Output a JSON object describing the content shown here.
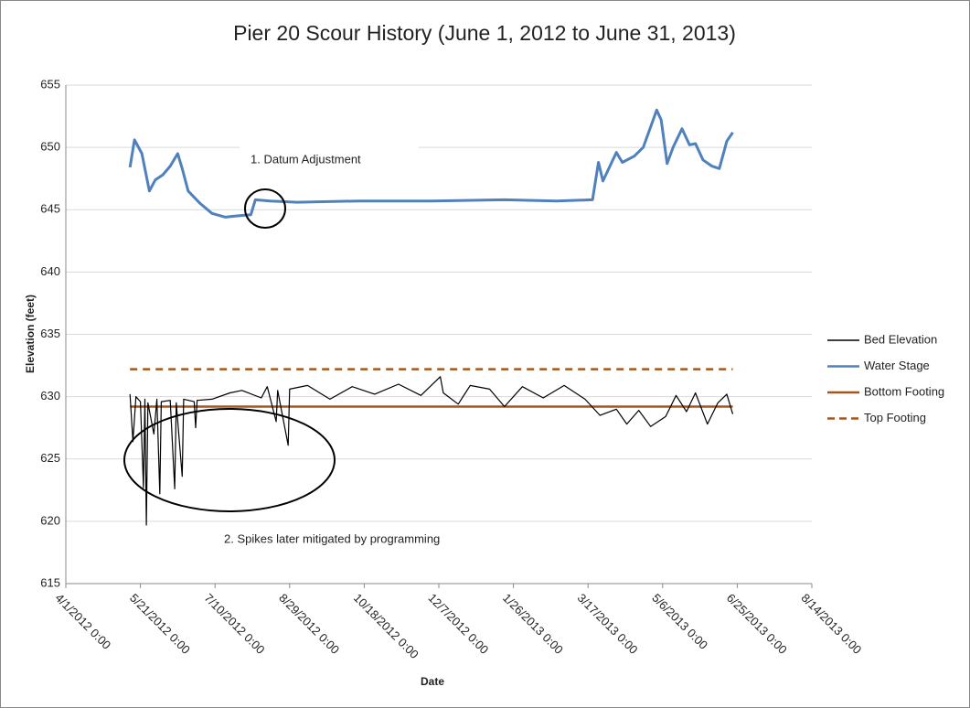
{
  "chart_data": {
    "type": "line",
    "title": "Pier 20 Scour History (June 1, 2012 to June 31, 2013)",
    "xlabel": "Date",
    "ylabel": "Elevation (feet)",
    "xlim": [
      "2012-04-01",
      "2013-08-14"
    ],
    "xticks": [
      {
        "value": "2012-04-01",
        "label": "4/1/2012 0:00"
      },
      {
        "value": "2012-05-21",
        "label": "5/21/2012 0:00"
      },
      {
        "value": "2012-07-10",
        "label": "7/10/2012 0:00"
      },
      {
        "value": "2012-08-29",
        "label": "8/29/2012 0:00"
      },
      {
        "value": "2012-10-18",
        "label": "10/18/2012 0:00"
      },
      {
        "value": "2012-12-07",
        "label": "12/7/2012 0:00"
      },
      {
        "value": "2013-01-26",
        "label": "1/26/2013 0:00"
      },
      {
        "value": "2013-03-17",
        "label": "3/17/2013 0:00"
      },
      {
        "value": "2013-05-06",
        "label": "5/6/2013 0:00"
      },
      {
        "value": "2013-06-25",
        "label": "6/25/2013 0:00"
      },
      {
        "value": "2013-08-14",
        "label": "8/14/2013 0:00"
      }
    ],
    "ylim": [
      615,
      655
    ],
    "yticks": [
      615,
      620,
      625,
      630,
      635,
      640,
      645,
      650,
      655
    ],
    "grid": true,
    "legend": "right",
    "annotations": [
      "1. Datum Adjustment",
      "2. Spikes later mitigated by programming"
    ],
    "series": [
      {
        "name": "Bed Elevation",
        "color": "#000000",
        "dash": false,
        "width": 1.2,
        "x": [
          "2012-05-14",
          "2012-05-16",
          "2012-05-18",
          "2012-05-21",
          "2012-05-23",
          "2012-05-24",
          "2012-05-25",
          "2012-05-26",
          "2012-05-30",
          "2012-06-01",
          "2012-06-03",
          "2012-06-04",
          "2012-06-10",
          "2012-06-13",
          "2012-06-14",
          "2012-06-18",
          "2012-06-19",
          "2012-06-26",
          "2012-06-27",
          "2012-06-28",
          "2012-07-08",
          "2012-07-20",
          "2012-07-28",
          "2012-08-10",
          "2012-08-14",
          "2012-08-20",
          "2012-08-21",
          "2012-08-28",
          "2012-08-29",
          "2012-09-10",
          "2012-09-25",
          "2012-10-10",
          "2012-10-25",
          "2012-11-10",
          "2012-11-25",
          "2012-12-08",
          "2012-12-10",
          "2012-12-20",
          "2012-12-28",
          "2013-01-10",
          "2013-01-20",
          "2013-02-01",
          "2013-02-15",
          "2013-03-01",
          "2013-03-15",
          "2013-03-25",
          "2013-04-05",
          "2013-04-12",
          "2013-04-20",
          "2013-04-28",
          "2013-05-08",
          "2013-05-15",
          "2013-05-22",
          "2013-05-28",
          "2013-06-05",
          "2013-06-12",
          "2013-06-18",
          "2013-06-22"
        ],
        "values": [
          630.2,
          626.4,
          630.0,
          629.6,
          622.7,
          629.8,
          619.7,
          629.5,
          627.0,
          629.8,
          622.2,
          629.6,
          629.7,
          622.6,
          629.5,
          623.6,
          629.8,
          629.6,
          627.5,
          629.7,
          629.8,
          630.3,
          630.5,
          629.9,
          630.8,
          628.0,
          630.5,
          626.1,
          630.6,
          630.9,
          629.8,
          630.8,
          630.2,
          631.0,
          630.1,
          631.6,
          630.3,
          629.4,
          630.9,
          630.6,
          629.2,
          630.8,
          629.9,
          630.9,
          629.8,
          628.5,
          629.0,
          627.8,
          628.9,
          627.6,
          628.4,
          630.1,
          628.8,
          630.3,
          627.8,
          629.5,
          630.2,
          628.6
        ]
      },
      {
        "name": "Water Stage",
        "color": "#4f81bd",
        "dash": false,
        "width": 3,
        "x": [
          "2012-05-14",
          "2012-05-17",
          "2012-05-22",
          "2012-05-27",
          "2012-05-31",
          "2012-06-05",
          "2012-06-10",
          "2012-06-15",
          "2012-06-18",
          "2012-06-22",
          "2012-06-30",
          "2012-07-08",
          "2012-07-17",
          "2012-07-24",
          "2012-08-03",
          "2012-08-06",
          "2012-08-16",
          "2012-09-03",
          "2012-10-15",
          "2012-12-02",
          "2013-01-20",
          "2013-02-24",
          "2013-03-20",
          "2013-03-24",
          "2013-03-27",
          "2013-04-05",
          "2013-04-09",
          "2013-04-17",
          "2013-04-23",
          "2013-05-02",
          "2013-05-05",
          "2013-05-09",
          "2013-05-13",
          "2013-05-19",
          "2013-05-24",
          "2013-05-28",
          "2013-06-02",
          "2013-06-08",
          "2013-06-13",
          "2013-06-18",
          "2013-06-22"
        ],
        "values": [
          648.4,
          650.6,
          649.5,
          646.5,
          647.4,
          647.8,
          648.5,
          649.5,
          648.3,
          646.5,
          645.5,
          644.7,
          644.4,
          644.5,
          644.6,
          645.8,
          645.7,
          645.6,
          645.7,
          645.7,
          645.8,
          645.7,
          645.8,
          648.8,
          647.3,
          649.6,
          648.8,
          649.3,
          650.0,
          653.0,
          652.2,
          648.7,
          650.0,
          651.5,
          650.2,
          650.3,
          649.0,
          648.5,
          648.3,
          650.5,
          651.2
        ]
      },
      {
        "name": "Bottom Footing",
        "color": "#a5561c",
        "dash": false,
        "width": 2.5,
        "x": [
          "2012-05-14",
          "2013-06-22"
        ],
        "values": [
          629.2,
          629.2
        ]
      },
      {
        "name": "Top Footing",
        "color": "#a5561c",
        "dash": true,
        "width": 2.5,
        "x": [
          "2012-05-14",
          "2013-06-22"
        ],
        "values": [
          632.2,
          632.2
        ]
      }
    ]
  }
}
